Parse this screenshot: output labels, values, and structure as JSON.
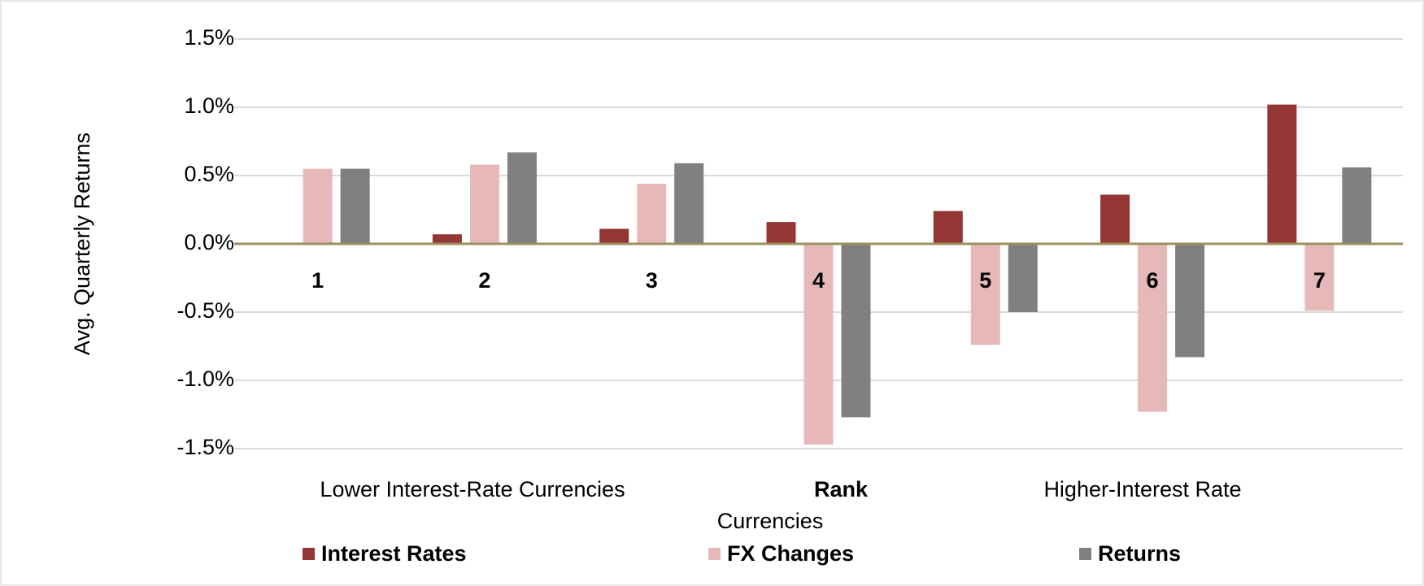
{
  "chart_data": {
    "type": "bar",
    "y_label": "Avg. Quarterly Returns",
    "x_label_lines": [
      "Lower Interest-Rate Currencies",
      "Rank",
      "Higher-Interest Rate",
      "Currencies"
    ],
    "categories": [
      "1",
      "2",
      "3",
      "4",
      "5",
      "6",
      "7"
    ],
    "series": [
      {
        "name": "Interest Rates",
        "color": "#943634",
        "values": [
          0,
          0.07,
          0.11,
          0.16,
          0.24,
          0.36,
          1.02
        ]
      },
      {
        "name": "FX Changes",
        "color": "#e6b9b8",
        "values": [
          0.55,
          0.58,
          0.44,
          -1.47,
          -0.74,
          -1.23,
          -0.49
        ]
      },
      {
        "name": "Returns",
        "color": "#808080",
        "values": [
          0.55,
          0.67,
          0.59,
          -1.27,
          -0.5,
          -0.83,
          0.56
        ]
      }
    ],
    "ylim": [
      -1.5,
      1.5
    ],
    "yticks": [
      {
        "value": -1.5,
        "label": "-1.5%"
      },
      {
        "value": -1.0,
        "label": "-1.0%"
      },
      {
        "value": -0.5,
        "label": "-0.5%"
      },
      {
        "value": 0,
        "label": "0.0%"
      },
      {
        "value": 0.5,
        "label": "0.5%"
      },
      {
        "value": 1.0,
        "label": "1.0%"
      },
      {
        "value": 1.5,
        "label": "1.5%"
      }
    ],
    "grid": true,
    "legend": "bottom"
  }
}
